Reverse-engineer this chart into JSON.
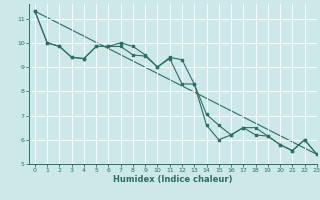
{
  "xlabel": "Humidex (Indice chaleur)",
  "background_color": "#cce8e8",
  "line_color": "#2d6e65",
  "grid_color": "#b0d8d8",
  "xlim": [
    -0.5,
    23
  ],
  "ylim": [
    5,
    11.6
  ],
  "yticks": [
    5,
    6,
    7,
    8,
    9,
    10,
    11
  ],
  "xticks": [
    0,
    1,
    2,
    3,
    4,
    5,
    6,
    7,
    8,
    9,
    10,
    11,
    12,
    13,
    14,
    15,
    16,
    17,
    18,
    19,
    20,
    21,
    22,
    23
  ],
  "series1_x": [
    0,
    1,
    2,
    3,
    4,
    5,
    6,
    7,
    8,
    9,
    10,
    11,
    12,
    13,
    14,
    15,
    16,
    17,
    18,
    19,
    20,
    21,
    22,
    23
  ],
  "series1_y": [
    11.3,
    10.0,
    9.85,
    9.4,
    9.35,
    9.85,
    9.85,
    10.0,
    9.85,
    9.5,
    9.0,
    9.4,
    9.3,
    8.3,
    6.6,
    6.0,
    6.2,
    6.5,
    6.5,
    6.15,
    5.8,
    5.55,
    6.0,
    5.4
  ],
  "series2_x": [
    0,
    1,
    2,
    3,
    4,
    5,
    6,
    7,
    8,
    9,
    10,
    11,
    12,
    13,
    14,
    15,
    16,
    17,
    18,
    19,
    20,
    21,
    22,
    23
  ],
  "series2_y": [
    11.3,
    10.0,
    9.85,
    9.4,
    9.35,
    9.85,
    9.85,
    9.85,
    9.5,
    9.45,
    9.0,
    9.35,
    8.3,
    8.3,
    7.05,
    6.6,
    6.2,
    6.5,
    6.2,
    6.15,
    5.8,
    5.55,
    6.0,
    5.4
  ],
  "trend_x": [
    0,
    23
  ],
  "trend_y": [
    11.3,
    5.4
  ]
}
